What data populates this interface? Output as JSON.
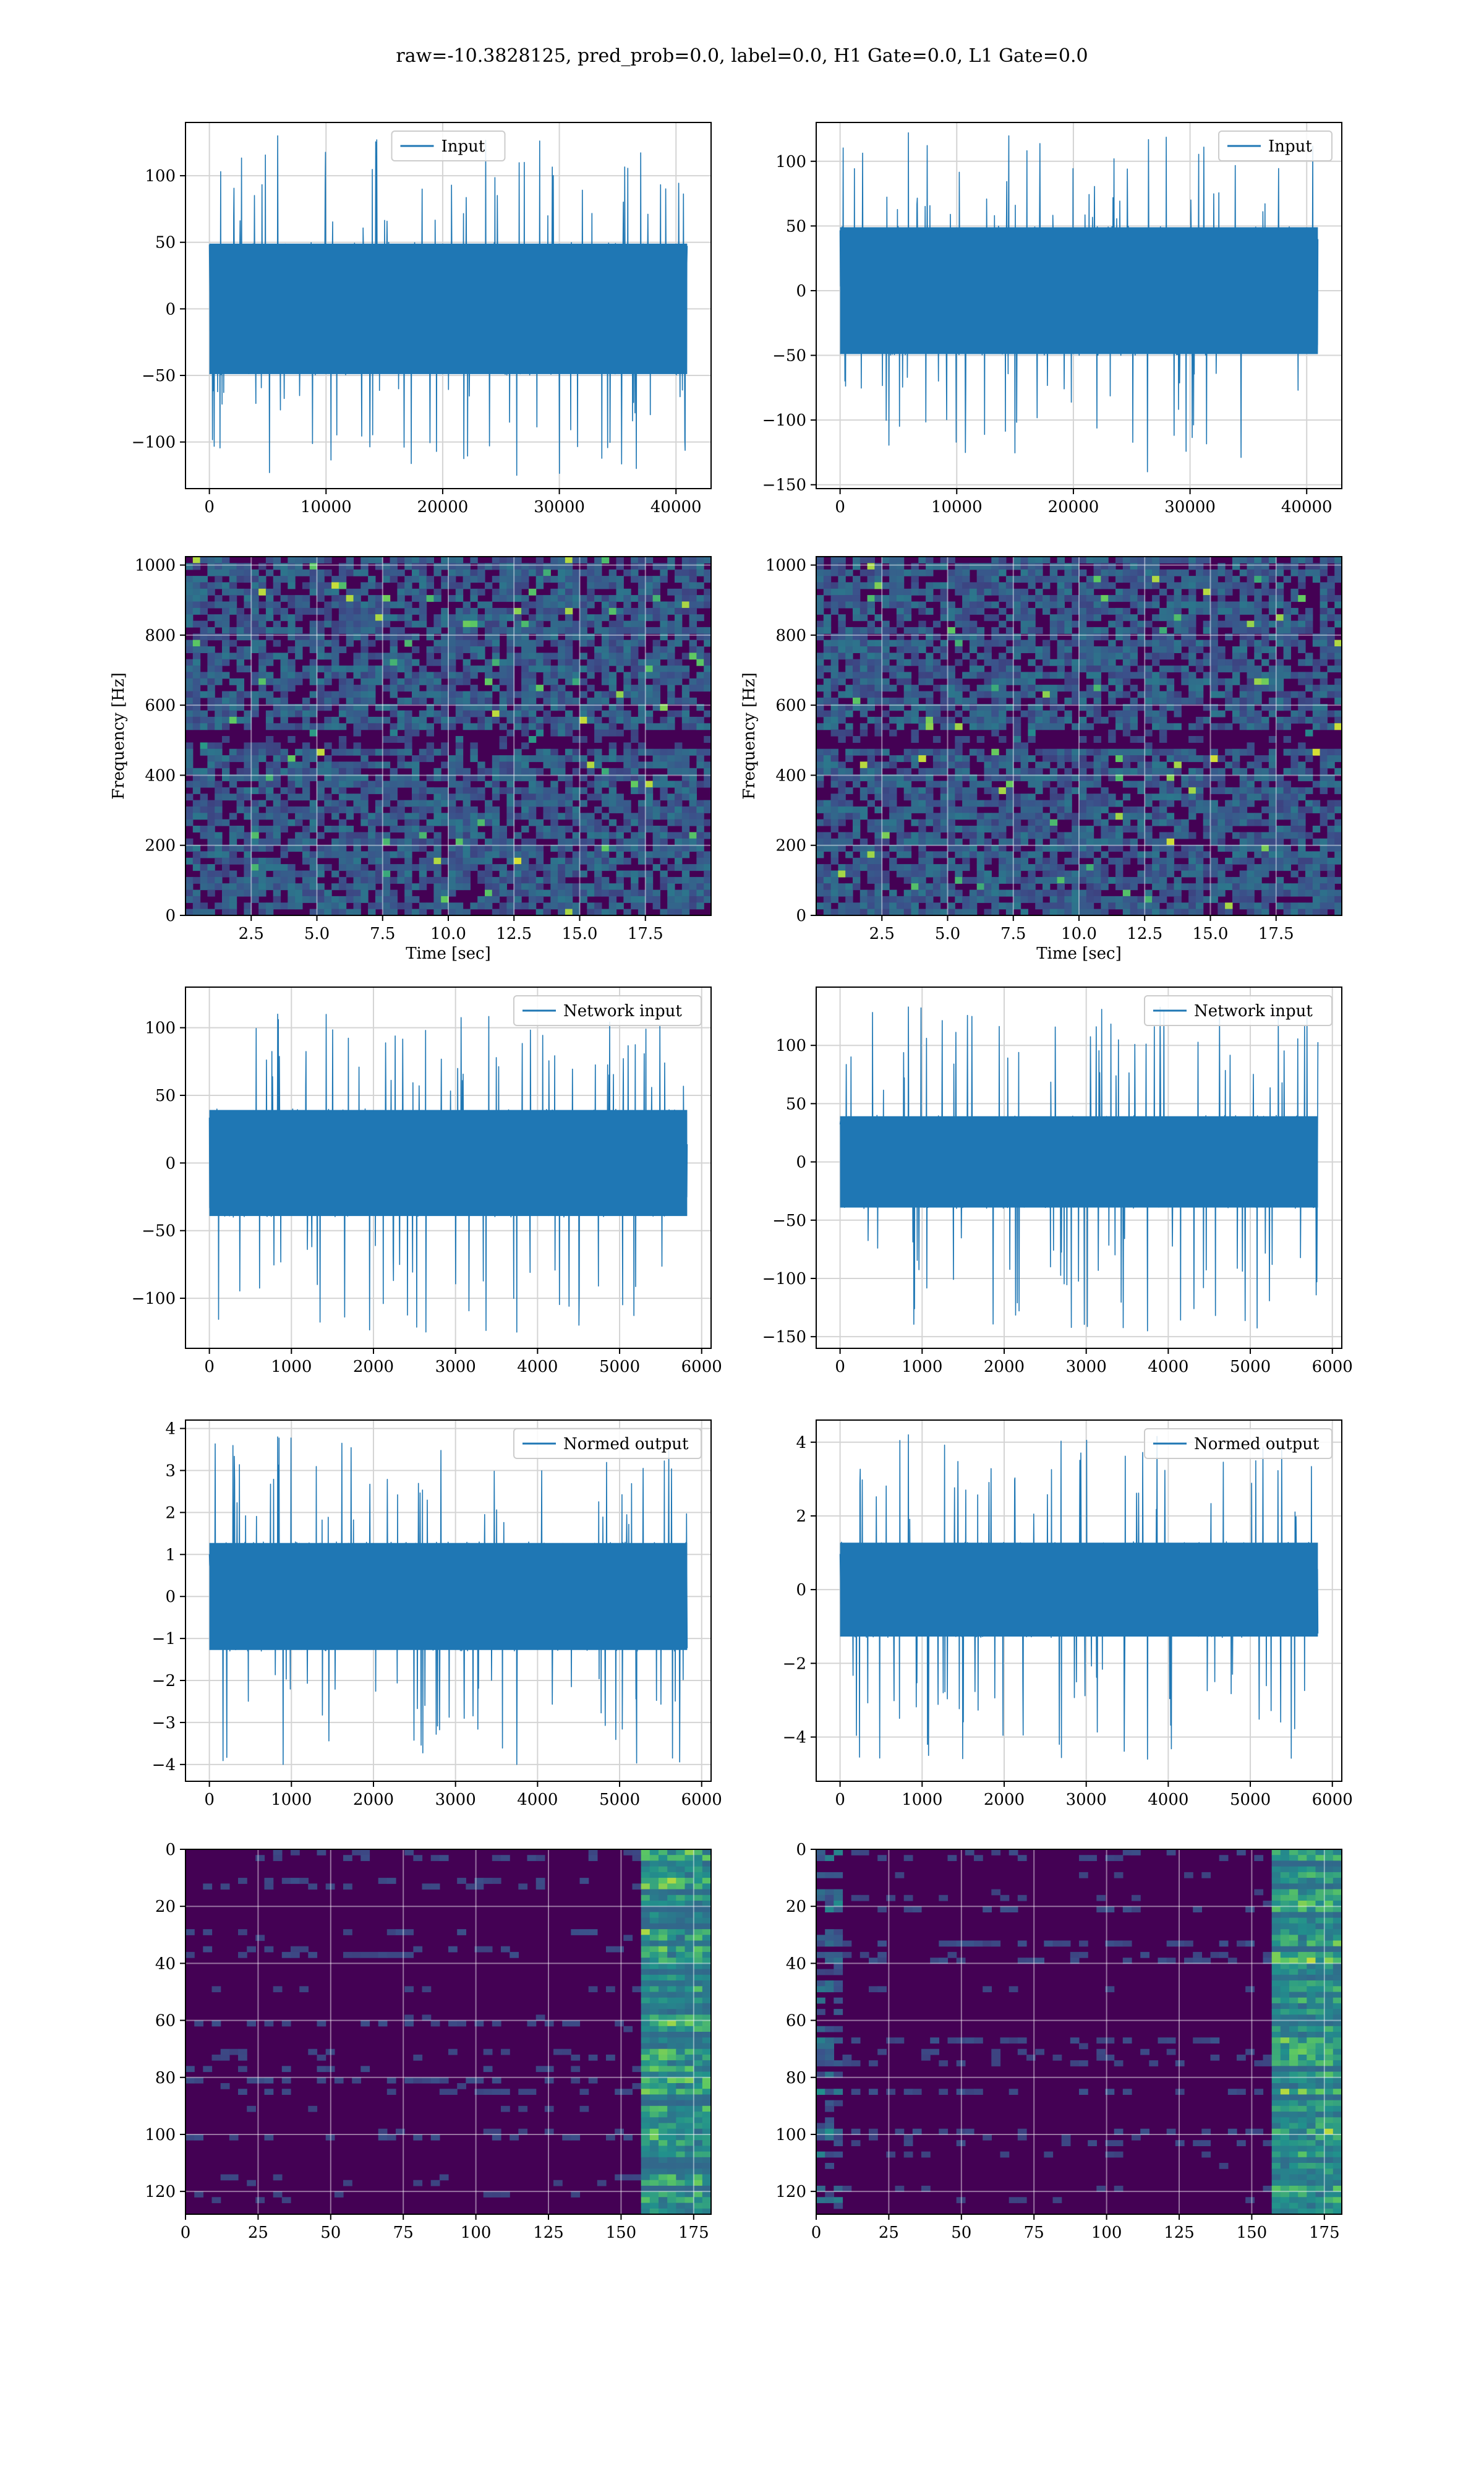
{
  "figure": {
    "title": "raw=-10.3828125, pred_prob=0.0, label=0.0, H1 Gate=0.0, L1 Gate=0.0"
  },
  "colors": {
    "line": "#1f77b4",
    "grid": "#d4d4d4",
    "viridis_low": "#440154",
    "viridis_mid": "#21918c",
    "viridis_high": "#fde725"
  },
  "chart_data": [
    {
      "id": "input-h1",
      "type": "line",
      "series": [
        {
          "name": "Input",
          "x_range": [
            0,
            40960
          ],
          "y_range_observed": [
            -125,
            130
          ],
          "typical_band": [
            -50,
            50
          ]
        }
      ],
      "xlim": [
        -2048,
        43008
      ],
      "ylim": [
        -135,
        140
      ],
      "xticks": [
        "0",
        "10000",
        "20000",
        "30000",
        "40000"
      ],
      "xtick_values": [
        0,
        10000,
        20000,
        30000,
        40000
      ],
      "yticks": [
        "100",
        "50",
        "0",
        "−50",
        "−100"
      ],
      "ytick_values": [
        100,
        50,
        0,
        -50,
        -100
      ],
      "grid": true,
      "legend": "upper center",
      "xlabel": "",
      "ylabel": ""
    },
    {
      "id": "input-l1",
      "type": "line",
      "series": [
        {
          "name": "Input",
          "x_range": [
            0,
            40960
          ],
          "y_range_observed": [
            -140,
            122
          ],
          "typical_band": [
            -50,
            50
          ]
        }
      ],
      "xlim": [
        -2048,
        43008
      ],
      "ylim": [
        -153,
        130
      ],
      "xticks": [
        "0",
        "10000",
        "20000",
        "30000",
        "40000"
      ],
      "xtick_values": [
        0,
        10000,
        20000,
        30000,
        40000
      ],
      "yticks": [
        "100",
        "50",
        "0",
        "−50",
        "−100",
        "−150"
      ],
      "ytick_values": [
        100,
        50,
        0,
        -50,
        -100,
        -150
      ],
      "grid": true,
      "legend": "upper right",
      "xlabel": "",
      "ylabel": ""
    },
    {
      "id": "spectrogram-h1",
      "type": "heatmap",
      "xlim": [
        0,
        20
      ],
      "ylim": [
        0,
        1024
      ],
      "xticks": [
        "2.5",
        "5.0",
        "7.5",
        "10.0",
        "12.5",
        "15.0",
        "17.5"
      ],
      "xtick_values": [
        2.5,
        5.0,
        7.5,
        10.0,
        12.5,
        15.0,
        17.5
      ],
      "yticks": [
        "1000",
        "800",
        "600",
        "400",
        "200",
        "0"
      ],
      "ytick_values": [
        1000,
        800,
        600,
        400,
        200,
        0
      ],
      "grid": true,
      "colormap": "viridis",
      "xlabel": "Time [sec]",
      "ylabel": "Frequency [Hz]"
    },
    {
      "id": "spectrogram-l1",
      "type": "heatmap",
      "xlim": [
        0,
        20
      ],
      "ylim": [
        0,
        1024
      ],
      "xticks": [
        "2.5",
        "5.0",
        "7.5",
        "10.0",
        "12.5",
        "15.0",
        "17.5"
      ],
      "xtick_values": [
        2.5,
        5.0,
        7.5,
        10.0,
        12.5,
        15.0,
        17.5
      ],
      "yticks": [
        "1000",
        "800",
        "600",
        "400",
        "200",
        "0"
      ],
      "ytick_values": [
        1000,
        800,
        600,
        400,
        200,
        0
      ],
      "grid": true,
      "colormap": "viridis",
      "xlabel": "Time [sec]",
      "ylabel": "Frequency [Hz]"
    },
    {
      "id": "network-input-h1",
      "type": "line",
      "series": [
        {
          "name": "Network input",
          "x_range": [
            0,
            5824
          ],
          "y_range_observed": [
            -125,
            110
          ],
          "typical_band": [
            -40,
            40
          ]
        }
      ],
      "xlim": [
        -291,
        6115
      ],
      "ylim": [
        -137,
        130
      ],
      "xticks": [
        "0",
        "1000",
        "2000",
        "3000",
        "4000",
        "5000",
        "6000"
      ],
      "xtick_values": [
        0,
        1000,
        2000,
        3000,
        4000,
        5000,
        6000
      ],
      "yticks": [
        "100",
        "50",
        "0",
        "−50",
        "−100"
      ],
      "ytick_values": [
        100,
        50,
        0,
        -50,
        -100
      ],
      "grid": true,
      "legend": "upper right",
      "xlabel": "",
      "ylabel": ""
    },
    {
      "id": "network-input-l1",
      "type": "line",
      "series": [
        {
          "name": "Network input",
          "x_range": [
            0,
            5824
          ],
          "y_range_observed": [
            -145,
            133
          ],
          "typical_band": [
            -40,
            40
          ]
        }
      ],
      "xlim": [
        -291,
        6115
      ],
      "ylim": [
        -160,
        150
      ],
      "xticks": [
        "0",
        "1000",
        "2000",
        "3000",
        "4000",
        "5000",
        "6000"
      ],
      "xtick_values": [
        0,
        1000,
        2000,
        3000,
        4000,
        5000,
        6000
      ],
      "yticks": [
        "100",
        "50",
        "0",
        "−50",
        "−100",
        "−150"
      ],
      "ytick_values": [
        100,
        50,
        0,
        -50,
        -100,
        -150
      ],
      "grid": true,
      "legend": "upper right",
      "xlabel": "",
      "ylabel": ""
    },
    {
      "id": "normed-output-h1",
      "type": "line",
      "series": [
        {
          "name": "Normed output",
          "x_range": [
            0,
            5824
          ],
          "y_range_observed": [
            -4.0,
            3.8
          ],
          "typical_band": [
            -1.3,
            1.3
          ]
        }
      ],
      "xlim": [
        -291,
        6115
      ],
      "ylim": [
        -4.4,
        4.2
      ],
      "xticks": [
        "0",
        "1000",
        "2000",
        "3000",
        "4000",
        "5000",
        "6000"
      ],
      "xtick_values": [
        0,
        1000,
        2000,
        3000,
        4000,
        5000,
        6000
      ],
      "yticks": [
        "4",
        "3",
        "2",
        "1",
        "0",
        "−1",
        "−2",
        "−3",
        "−4"
      ],
      "ytick_values": [
        4,
        3,
        2,
        1,
        0,
        -1,
        -2,
        -3,
        -4
      ],
      "grid": true,
      "legend": "upper right",
      "xlabel": "",
      "ylabel": ""
    },
    {
      "id": "normed-output-l1",
      "type": "line",
      "series": [
        {
          "name": "Normed output",
          "x_range": [
            0,
            5824
          ],
          "y_range_observed": [
            -4.6,
            4.2
          ],
          "typical_band": [
            -1.3,
            1.3
          ]
        }
      ],
      "xlim": [
        -291,
        6115
      ],
      "ylim": [
        -5.2,
        4.6
      ],
      "xticks": [
        "0",
        "1000",
        "2000",
        "3000",
        "4000",
        "5000",
        "6000"
      ],
      "xtick_values": [
        0,
        1000,
        2000,
        3000,
        4000,
        5000,
        6000
      ],
      "yticks": [
        "4",
        "2",
        "0",
        "−2",
        "−4"
      ],
      "ytick_values": [
        4,
        2,
        0,
        -2,
        -4
      ],
      "grid": true,
      "legend": "upper right",
      "xlabel": "",
      "ylabel": ""
    },
    {
      "id": "feature-map-h1",
      "type": "heatmap",
      "xlim": [
        0,
        181
      ],
      "ylim_inverted": [
        128,
        0
      ],
      "xticks": [
        "0",
        "25",
        "50",
        "75",
        "100",
        "125",
        "150",
        "175"
      ],
      "xtick_values": [
        0,
        25,
        50,
        75,
        100,
        125,
        150,
        175
      ],
      "yticks": [
        "0",
        "20",
        "40",
        "60",
        "80",
        "100",
        "120"
      ],
      "ytick_values": [
        0,
        20,
        40,
        60,
        80,
        100,
        120
      ],
      "grid": true,
      "colormap": "viridis",
      "xlabel": "",
      "ylabel": ""
    },
    {
      "id": "feature-map-l1",
      "type": "heatmap",
      "xlim": [
        0,
        181
      ],
      "ylim_inverted": [
        128,
        0
      ],
      "xticks": [
        "0",
        "25",
        "50",
        "75",
        "100",
        "125",
        "150",
        "175"
      ],
      "xtick_values": [
        0,
        25,
        50,
        75,
        100,
        125,
        150,
        175
      ],
      "yticks": [
        "0",
        "20",
        "40",
        "60",
        "80",
        "100",
        "120"
      ],
      "ytick_values": [
        0,
        20,
        40,
        60,
        80,
        100,
        120
      ],
      "grid": true,
      "colormap": "viridis",
      "xlabel": "",
      "ylabel": ""
    }
  ]
}
